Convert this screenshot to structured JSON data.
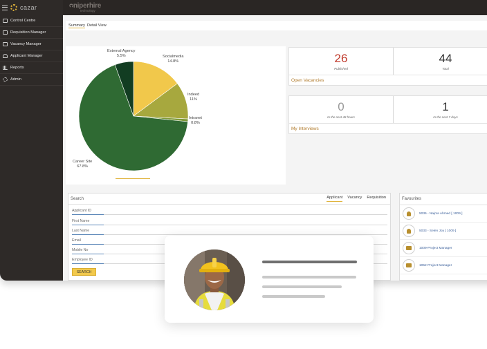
{
  "app": {
    "brand_name": "cazar",
    "company_name": "ᴒniperhire",
    "company_tagline": "technology"
  },
  "sidebar": {
    "items": [
      {
        "label": "Control Centre",
        "icon": "monitor-icon"
      },
      {
        "label": "Requisition Manager",
        "icon": "list-icon"
      },
      {
        "label": "Vacancy Manager",
        "icon": "briefcase-icon"
      },
      {
        "label": "Applicant Manager",
        "icon": "user-icon"
      },
      {
        "label": "Reports",
        "icon": "bar-chart-icon"
      },
      {
        "label": "Admin",
        "icon": "gear-icon"
      }
    ]
  },
  "tabs": [
    {
      "label": "Summary"
    },
    {
      "label": "Detail View"
    }
  ],
  "chart_data": {
    "type": "pie",
    "slices": [
      {
        "name": "Socialmedia",
        "value": 14.8,
        "label": "Socialmedia",
        "value_label": "14.8%",
        "color": "#f1c84b"
      },
      {
        "name": "Indeed",
        "value": 11,
        "label": "Indeed",
        "value_label": "11%",
        "color": "#a7a83e"
      },
      {
        "name": "Intranet",
        "value": 0.8,
        "label": "Intranet",
        "value_label": "0.8%",
        "color": "#7f9a3a"
      },
      {
        "name": "Career Site",
        "value": 67.8,
        "label": "Career Site",
        "value_label": "67.8%",
        "color": "#2f6a33"
      },
      {
        "name": "External Agency",
        "value": 5.5,
        "label": "External Agency",
        "value_label": "5.5%",
        "color": "#123d22"
      }
    ]
  },
  "vacancies": {
    "title": "Open Vacancies",
    "published": {
      "value": "26",
      "caption": "Published"
    },
    "total": {
      "value": "44",
      "caption": "Total"
    }
  },
  "interviews": {
    "title": "My Interviews",
    "next48": {
      "value": "0",
      "caption": "In the next 48 hours"
    },
    "next7": {
      "value": "1",
      "caption": "In the next 7 days"
    }
  },
  "search": {
    "title": "Search",
    "tabs": [
      "Applicant",
      "Vacancy",
      "Requisition"
    ],
    "fields": [
      "Applicant ID",
      "First Name",
      "Last Name",
      "Email",
      "Mobile No",
      "Employee ID"
    ],
    "button_label": "SEARCH"
  },
  "favourites": {
    "title": "Favourites",
    "items": [
      {
        "label": "5036 - Najma Ahmed [ 1009 ]",
        "icon": "person-icon"
      },
      {
        "label": "5033 - Selen Joy [ 1009 ]",
        "icon": "person-icon"
      },
      {
        "label": "1009-Project Manager",
        "icon": "briefcase-icon"
      },
      {
        "label": "1052 Project Manager",
        "icon": "briefcase-icon"
      }
    ]
  },
  "colors": {
    "accent": "#e0b33a",
    "sidebar": "#2e2a28",
    "link": "#3a5f9a",
    "kpi_red": "#c0392b"
  }
}
